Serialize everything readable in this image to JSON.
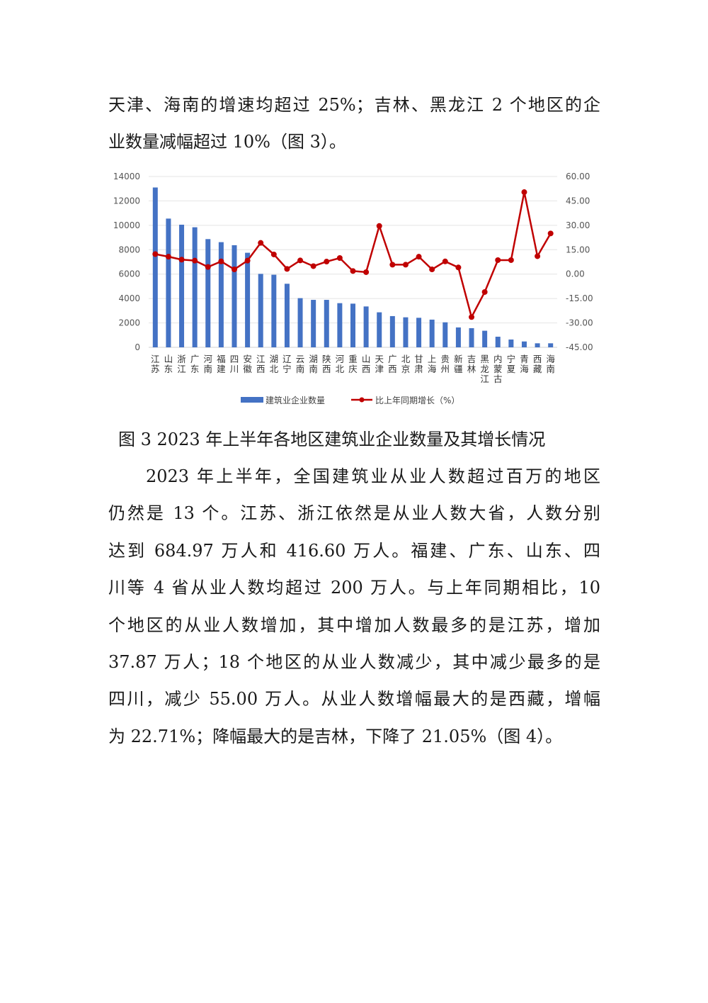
{
  "paragraph1": {
    "lines": [
      "天津、海南的增速均超过 25%；吉林、黑龙江 2 个地区的企",
      "业数量减幅超过 10%（图 3）。"
    ]
  },
  "caption": "图 3 2023 年上半年各地区建筑业企业数量及其增长情况",
  "paragraph2": {
    "lines": [
      "2023 年上半年，全国建筑业从业人数超过百万的地区",
      "仍然是 13 个。江苏、浙江依然是从业人数大省，人数分别",
      "达到 684.97 万人和 416.60 万人。福建、广东、山东、四",
      "川等 4 省从业人数均超过 200 万人。与上年同期相比，10",
      "个地区的从业人数增加，其中增加人数最多的是江苏，增加",
      "37.87 万人；18 个地区的从业人数减少，其中减少最多的是",
      "四川，减少 55.00 万人。从业人数增幅最大的是西藏，增幅",
      "为 22.71%；降幅最大的是吉林，下降了 21.05%（图 4）。"
    ]
  },
  "chart_data": {
    "type": "bar+line",
    "categories": [
      "江苏",
      "山东",
      "浙江",
      "广东",
      "河南",
      "福建",
      "四川",
      "安徽",
      "江西",
      "湖北",
      "辽宁",
      "云南",
      "湖南",
      "陕西",
      "河北",
      "重庆",
      "山西",
      "天津",
      "广西",
      "北京",
      "甘肃",
      "上海",
      "贵州",
      "新疆",
      "吉林",
      "黑龙江",
      "内蒙古",
      "宁夏",
      "青海",
      "西藏",
      "海南"
    ],
    "series": [
      {
        "name": "建筑业企业数量",
        "type": "bar",
        "axis": "left",
        "color": "#4472c4",
        "values": [
          13100,
          10550,
          10050,
          9840,
          8870,
          8620,
          8370,
          7750,
          6020,
          5950,
          5210,
          4030,
          3890,
          3890,
          3620,
          3580,
          3350,
          2870,
          2560,
          2460,
          2420,
          2270,
          2050,
          1630,
          1570,
          1360,
          870,
          640,
          480,
          330,
          330
        ]
      },
      {
        "name": "比上年同期增长（%）",
        "type": "line",
        "axis": "right",
        "color": "#c00000",
        "values": [
          12.3,
          10.7,
          8.9,
          8.3,
          4.4,
          7.8,
          2.9,
          8.3,
          19.2,
          12.1,
          3.2,
          8.4,
          4.9,
          7.7,
          9.9,
          1.9,
          1.2,
          29.6,
          5.8,
          5.8,
          10.7,
          2.9,
          7.8,
          4.1,
          -26.4,
          -11.0,
          8.6,
          8.6,
          50.4,
          11.0,
          25.0
        ]
      }
    ],
    "left_axis": {
      "ylim": [
        0,
        14000
      ],
      "ticks": [
        "0",
        "2000",
        "4000",
        "6000",
        "8000",
        "10000",
        "12000",
        "14000"
      ]
    },
    "right_axis": {
      "ylim": [
        -45,
        60
      ],
      "ticks": [
        "-45.00",
        "-30.00",
        "-15.00",
        "0.00",
        "15.00",
        "30.00",
        "45.00",
        "60.00"
      ]
    },
    "grid": true,
    "legend": "bottom"
  }
}
